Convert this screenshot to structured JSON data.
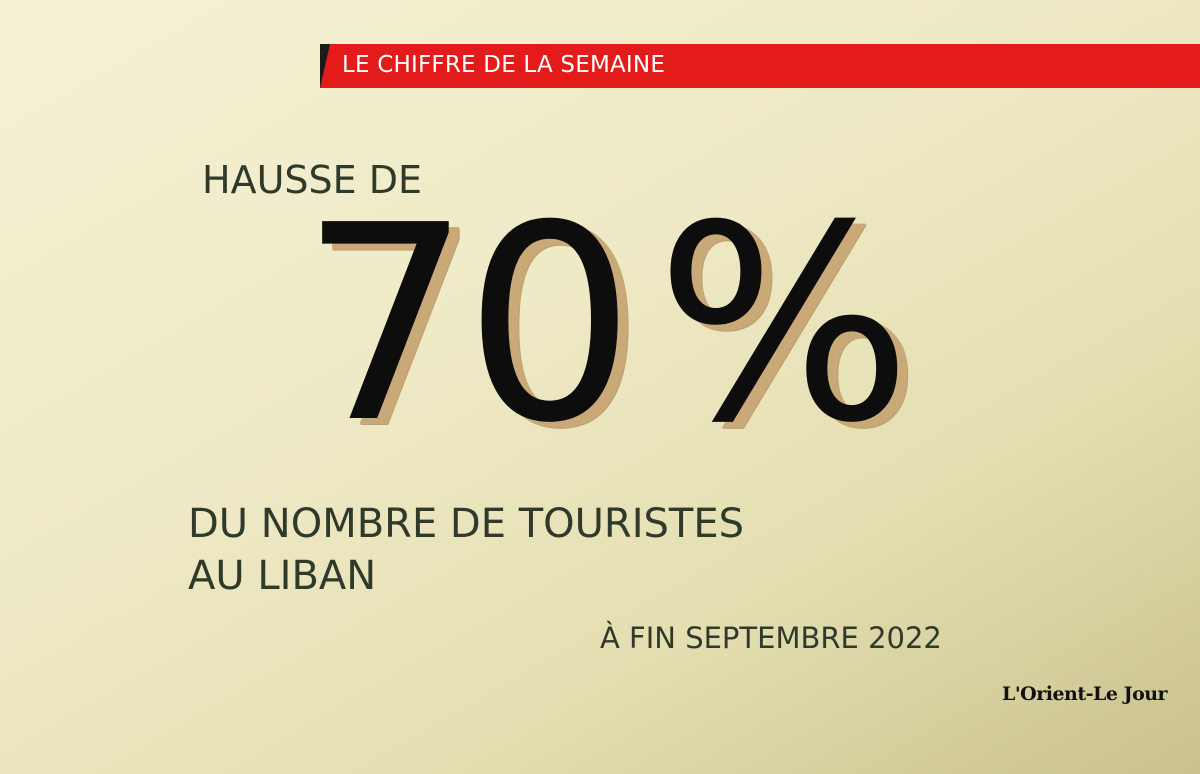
{
  "header": {
    "label": "LE CHIFFRE DE LA SEMAINE"
  },
  "headline": {
    "lead": "HAUSSE DE",
    "value": "70",
    "unit": "%",
    "description_line1": "DU NOMBRE DE TOURISTES",
    "description_line2": "AU LIBAN",
    "date": "À FIN SEPTEMBRE 2022"
  },
  "brand": {
    "logo_text": "L'Orient-Le Jour"
  },
  "colors": {
    "banner": "#e31b1b",
    "banner_notch": "#1a1a1a",
    "text": "#2f3a2a",
    "number": "#0d0d0d",
    "number_shadow": "#c9a978",
    "background": "#efeac6"
  }
}
